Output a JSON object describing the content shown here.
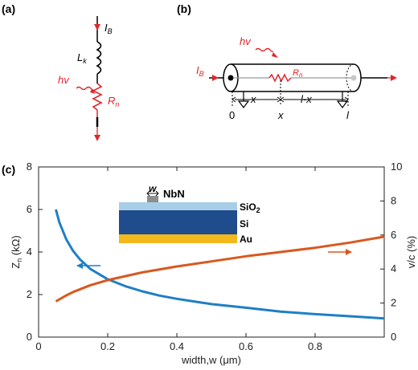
{
  "panels": {
    "a": "(a)",
    "b": "(b)",
    "c": "(c)"
  },
  "colors": {
    "red": "#e0262b",
    "blue": "#1f7fc4",
    "orange": "#d8581f",
    "sio2": "#a9cfe8",
    "si": "#1e4c8c",
    "au": "#f2b81c",
    "nbn": "#8d8d8d"
  },
  "circuit_a": {
    "current": "I",
    "current_sub": "B",
    "inductor": "L",
    "inductor_sub": "k",
    "photon": "hv",
    "resistor": "R",
    "resistor_sub": "n"
  },
  "circuit_b": {
    "current": "I",
    "current_sub": "B",
    "photon": "hv",
    "resistor": "R",
    "resistor_sub": "n",
    "seg_x": "x",
    "seg_lx": "l-x",
    "pos_0": "0",
    "pos_x": "x",
    "pos_l": "l"
  },
  "inset": {
    "width_label": "w",
    "nbn": "NbN",
    "sio2": "SiO",
    "sio2_sub": "2",
    "si": "Si",
    "au": "Au"
  },
  "chart_data": {
    "type": "line",
    "xlabel": "width,w (μm)",
    "ylabel_left": "Z",
    "ylabel_left_sub": "n",
    "ylabel_left_unit": " (kΩ)",
    "ylabel_right": "v/c (%)",
    "xlim": [
      0,
      1.0
    ],
    "ylim_left": [
      0,
      8
    ],
    "ylim_right": [
      0,
      10
    ],
    "x_ticks": [
      "0",
      "0.2",
      "0.4",
      "0.6",
      "0.8"
    ],
    "y_left_ticks": [
      "0",
      "2",
      "4",
      "6",
      "8"
    ],
    "y_right_ticks": [
      "0",
      "2",
      "4",
      "6",
      "8",
      "10"
    ],
    "series": [
      {
        "axis": "left",
        "color": "#1f7fc4",
        "points": [
          [
            0.05,
            6.0
          ],
          [
            0.06,
            5.4
          ],
          [
            0.08,
            4.6
          ],
          [
            0.1,
            4.05
          ],
          [
            0.12,
            3.65
          ],
          [
            0.15,
            3.2
          ],
          [
            0.2,
            2.72
          ],
          [
            0.25,
            2.4
          ],
          [
            0.3,
            2.15
          ],
          [
            0.35,
            1.95
          ],
          [
            0.4,
            1.8
          ],
          [
            0.5,
            1.55
          ],
          [
            0.6,
            1.38
          ],
          [
            0.7,
            1.2
          ],
          [
            0.8,
            1.08
          ],
          [
            0.9,
            0.98
          ],
          [
            1.0,
            0.88
          ]
        ]
      },
      {
        "axis": "right",
        "color": "#d8581f",
        "points": [
          [
            0.05,
            2.1
          ],
          [
            0.08,
            2.45
          ],
          [
            0.1,
            2.65
          ],
          [
            0.15,
            3.05
          ],
          [
            0.2,
            3.35
          ],
          [
            0.3,
            3.8
          ],
          [
            0.4,
            4.15
          ],
          [
            0.5,
            4.45
          ],
          [
            0.6,
            4.75
          ],
          [
            0.7,
            5.0
          ],
          [
            0.8,
            5.25
          ],
          [
            0.9,
            5.55
          ],
          [
            1.0,
            5.9
          ]
        ]
      }
    ]
  }
}
